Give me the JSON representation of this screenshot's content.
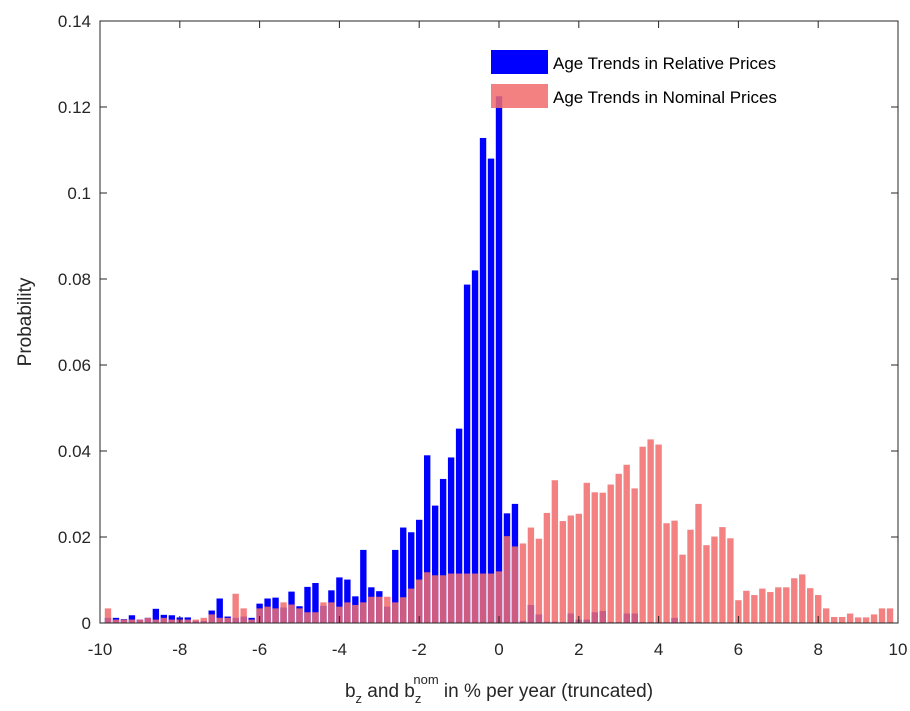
{
  "chart_data": {
    "type": "bar",
    "ylabel": "Probability",
    "xlabel": {
      "parts": [
        "b",
        "z",
        " and b",
        "z",
        "nom",
        " in % per year (truncated)"
      ]
    },
    "xlim": [
      -10,
      10
    ],
    "ylim": [
      0,
      0.14
    ],
    "xticks": [
      "-10",
      "-8",
      "-6",
      "-4",
      "-2",
      "0",
      "2",
      "4",
      "6",
      "8",
      "10"
    ],
    "yticks": [
      "0",
      "0.02",
      "0.04",
      "0.06",
      "0.08",
      "0.1",
      "0.12",
      "0.14"
    ],
    "grid": false,
    "legend_position": "top-right",
    "series": [
      {
        "name": "Age Trends in Relative Prices",
        "color": "#0000FF",
        "opacity": 1,
        "x": [
          -9.8,
          -9.6,
          -9.4,
          -9.2,
          -9.0,
          -8.8,
          -8.6,
          -8.4,
          -8.2,
          -8.0,
          -7.8,
          -7.6,
          -7.4,
          -7.2,
          -7.0,
          -6.8,
          -6.6,
          -6.4,
          -6.2,
          -6.0,
          -5.8,
          -5.6,
          -5.4,
          -5.2,
          -5.0,
          -4.8,
          -4.6,
          -4.4,
          -4.2,
          -4.0,
          -3.8,
          -3.6,
          -3.4,
          -3.2,
          -3.0,
          -2.8,
          -2.6,
          -2.4,
          -2.2,
          -2.0,
          -1.8,
          -1.6,
          -1.4,
          -1.2,
          -1.0,
          -0.8,
          -0.6,
          -0.4,
          -0.2,
          0.0,
          0.2,
          0.4,
          0.6,
          0.8,
          1.0,
          1.2,
          1.4,
          1.6,
          1.8,
          2.0,
          2.2,
          2.4,
          2.6,
          2.8,
          3.0,
          3.2,
          3.4,
          3.6,
          3.8,
          4.0,
          4.2,
          4.4,
          4.6,
          4.8,
          5.0
        ],
        "values": [
          0.0012,
          0.0012,
          0.0009,
          0.0018,
          0.0008,
          0.0012,
          0.0033,
          0.0019,
          0.0018,
          0.0013,
          0.0013,
          0.0005,
          0.0005,
          0.0029,
          0.0057,
          0.0015,
          0.0012,
          0.0015,
          0.0012,
          0.0045,
          0.0057,
          0.0059,
          0.0036,
          0.0073,
          0.0039,
          0.0084,
          0.0093,
          0.004,
          0.0076,
          0.0106,
          0.0101,
          0.0062,
          0.017,
          0.0083,
          0.0074,
          0.0038,
          0.017,
          0.0222,
          0.0211,
          0.024,
          0.039,
          0.0273,
          0.0335,
          0.0385,
          0.0452,
          0.0787,
          0.082,
          0.1128,
          0.108,
          0.1225,
          0.0255,
          0.0277,
          0.0005,
          0.0042,
          0.002,
          0.0003,
          0.0003,
          0.0002,
          0.0022,
          0.0008,
          0.0008,
          0.0025,
          0.0028,
          0.0002,
          0.0002,
          0.0022,
          0.0022,
          0.0002,
          0.0002,
          0.0002,
          0.0002,
          0.0012,
          0.0002,
          0.0002,
          0.0002
        ]
      },
      {
        "name": "Age Trends in Nominal Prices",
        "color": "#F26B6B",
        "opacity": 0.85,
        "x": [
          -9.8,
          -9.6,
          -9.4,
          -9.2,
          -9.0,
          -8.8,
          -8.6,
          -8.4,
          -8.2,
          -8.0,
          -7.8,
          -7.6,
          -7.4,
          -7.2,
          -7.0,
          -6.8,
          -6.6,
          -6.4,
          -6.2,
          -6.0,
          -5.8,
          -5.6,
          -5.4,
          -5.2,
          -5.0,
          -4.8,
          -4.6,
          -4.4,
          -4.2,
          -4.0,
          -3.8,
          -3.6,
          -3.4,
          -3.2,
          -3.0,
          -2.8,
          -2.6,
          -2.4,
          -2.2,
          -2.0,
          -1.8,
          -1.6,
          -1.4,
          -1.2,
          -1.0,
          -0.8,
          -0.6,
          -0.4,
          -0.2,
          0.0,
          0.2,
          0.4,
          0.6,
          0.8,
          1.0,
          1.2,
          1.4,
          1.6,
          1.8,
          2.0,
          2.2,
          2.4,
          2.6,
          2.8,
          3.0,
          3.2,
          3.4,
          3.6,
          3.8,
          4.0,
          4.2,
          4.4,
          4.6,
          4.8,
          5.0,
          5.2,
          5.4,
          5.6,
          5.8,
          6.0,
          6.2,
          6.4,
          6.6,
          6.8,
          7.0,
          7.2,
          7.4,
          7.6,
          7.8,
          8.0,
          8.2,
          8.4,
          8.6,
          8.8,
          9.0,
          9.2,
          9.4,
          9.6,
          9.8
        ],
        "values": [
          0.0034,
          0.0008,
          0.0008,
          0.0008,
          0.0008,
          0.0012,
          0.0008,
          0.0012,
          0.0008,
          0.0008,
          0.0008,
          0.0008,
          0.0012,
          0.002,
          0.0012,
          0.0012,
          0.0068,
          0.0034,
          0.0008,
          0.0034,
          0.0038,
          0.0034,
          0.0048,
          0.0043,
          0.0034,
          0.0025,
          0.0025,
          0.0048,
          0.0048,
          0.0038,
          0.0048,
          0.0042,
          0.0048,
          0.0061,
          0.0061,
          0.0061,
          0.0048,
          0.006,
          0.008,
          0.0101,
          0.0118,
          0.0111,
          0.0111,
          0.0115,
          0.0115,
          0.0115,
          0.0115,
          0.0115,
          0.0115,
          0.012,
          0.0202,
          0.0178,
          0.0185,
          0.0222,
          0.0196,
          0.0256,
          0.0332,
          0.0237,
          0.025,
          0.0254,
          0.0326,
          0.0304,
          0.0303,
          0.0322,
          0.0347,
          0.0368,
          0.0313,
          0.041,
          0.0427,
          0.0415,
          0.0232,
          0.0238,
          0.0159,
          0.0217,
          0.0277,
          0.0181,
          0.0201,
          0.0223,
          0.0197,
          0.0053,
          0.0075,
          0.0065,
          0.008,
          0.0072,
          0.0083,
          0.0083,
          0.0104,
          0.0113,
          0.0081,
          0.0065,
          0.0034,
          0.0014,
          0.0014,
          0.0022,
          0.0013,
          0.0013,
          0.002,
          0.0034,
          0.0034
        ]
      }
    ]
  }
}
